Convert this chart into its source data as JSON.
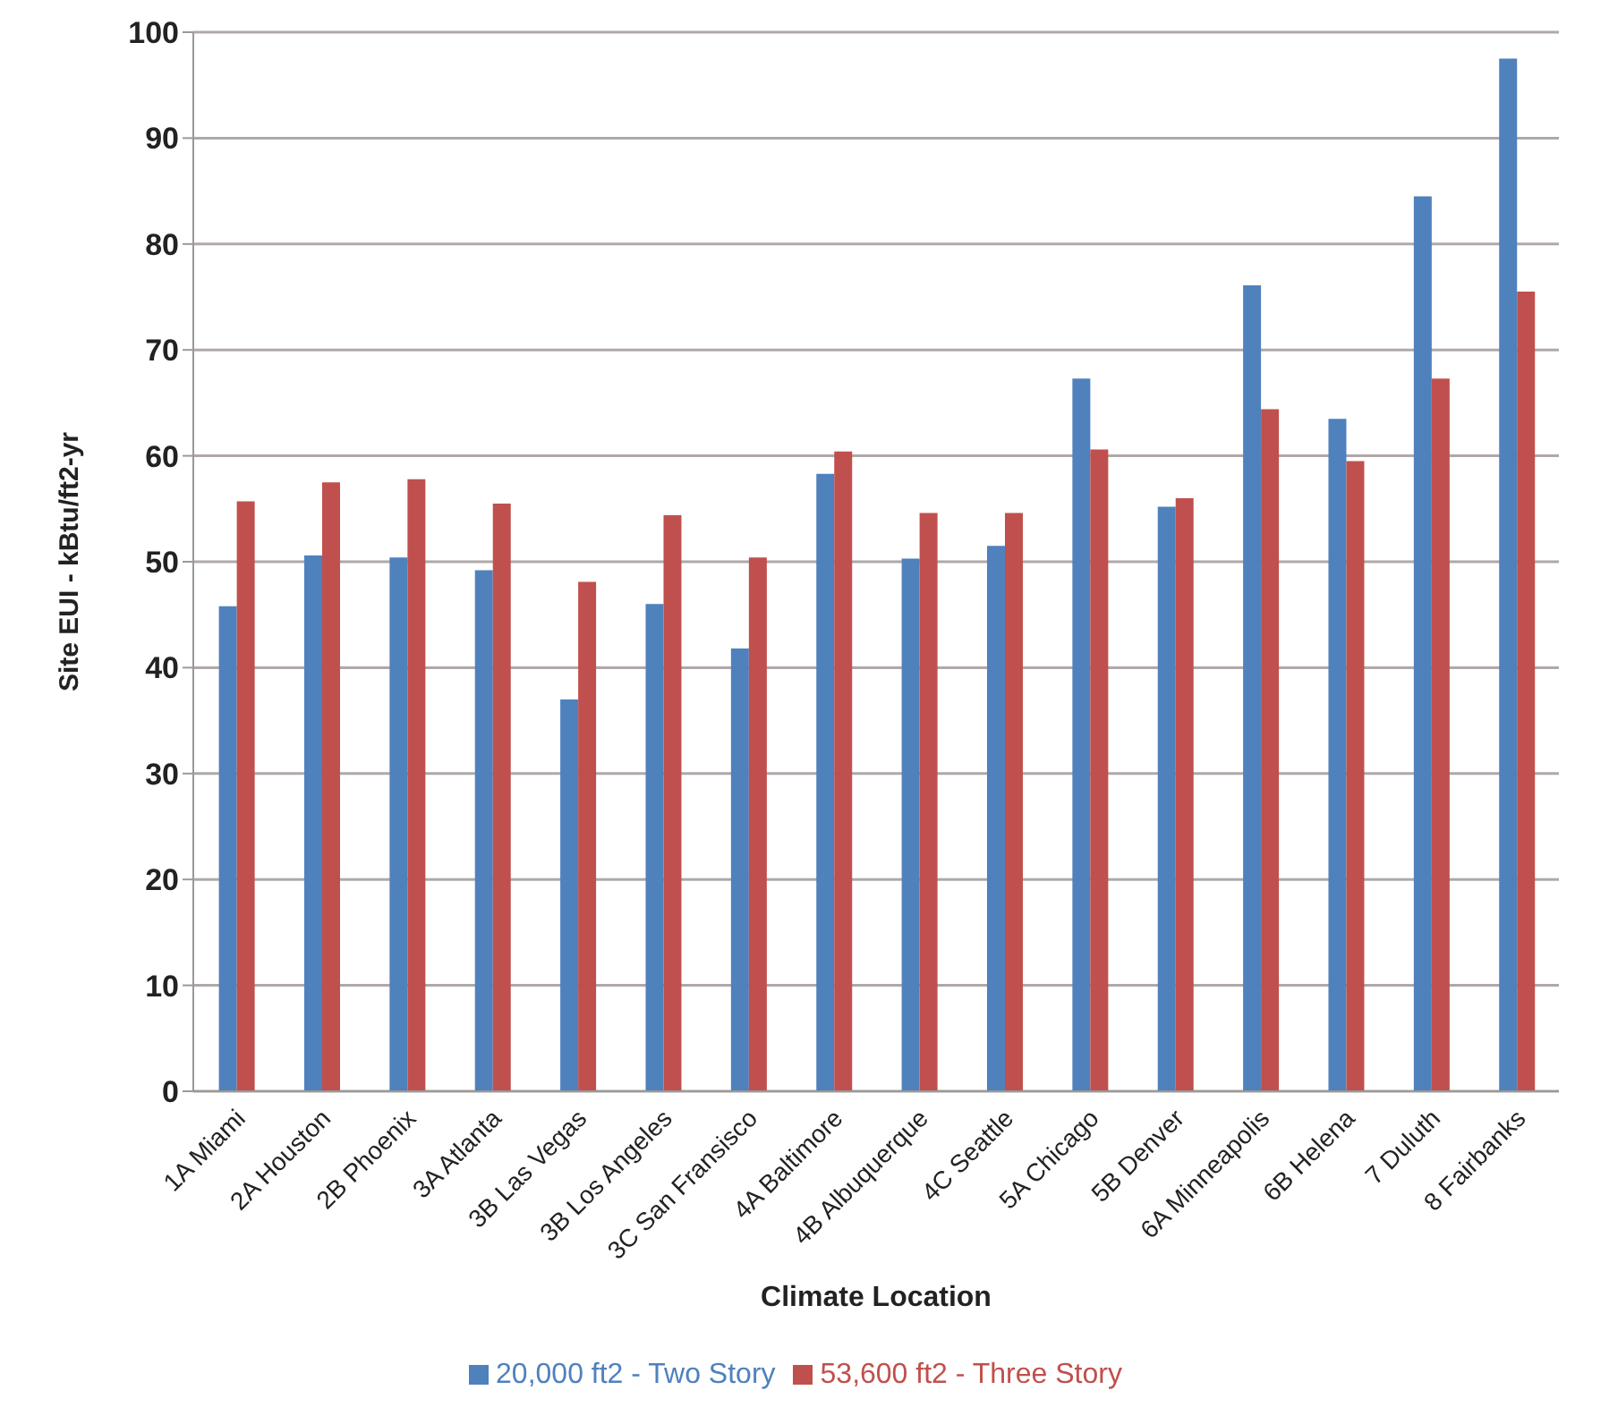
{
  "chart_data": {
    "type": "bar",
    "xlabel": "Climate Location",
    "ylabel": "Site EUI - kBtu/ft2-yr",
    "categories": [
      "1A Miami",
      "2A Houston",
      "2B Phoenix",
      "3A Atlanta",
      "3B Las Vegas",
      "3B Los Angeles",
      "3C San Fransisco",
      "4A Baltimore",
      "4B Albuquerque",
      "4C Seattle",
      "5A Chicago",
      "5B Denver",
      "6A Minneapolis",
      "6B Helena",
      "7 Duluth",
      "8 Fairbanks"
    ],
    "series": [
      {
        "name": "20,000 ft2 - Two Story",
        "color": "#4f81bd",
        "values": [
          45.8,
          50.6,
          50.4,
          49.2,
          37,
          46,
          41.8,
          58.3,
          50.3,
          51.5,
          67.3,
          55.2,
          76.1,
          63.5,
          84.5,
          97.5
        ]
      },
      {
        "name": "53,600 ft2 - Three Story",
        "color": "#c0504d",
        "values": [
          55.7,
          57.5,
          57.8,
          55.5,
          48.1,
          54.4,
          50.4,
          60.4,
          54.6,
          54.6,
          60.6,
          56,
          64.4,
          59.5,
          67.3,
          75.5
        ]
      }
    ],
    "ylim": [
      0,
      100
    ],
    "yticks": [
      0,
      10,
      20,
      30,
      40,
      50,
      60,
      70,
      80,
      90,
      100
    ],
    "grid": "y",
    "legend": "bottom"
  }
}
